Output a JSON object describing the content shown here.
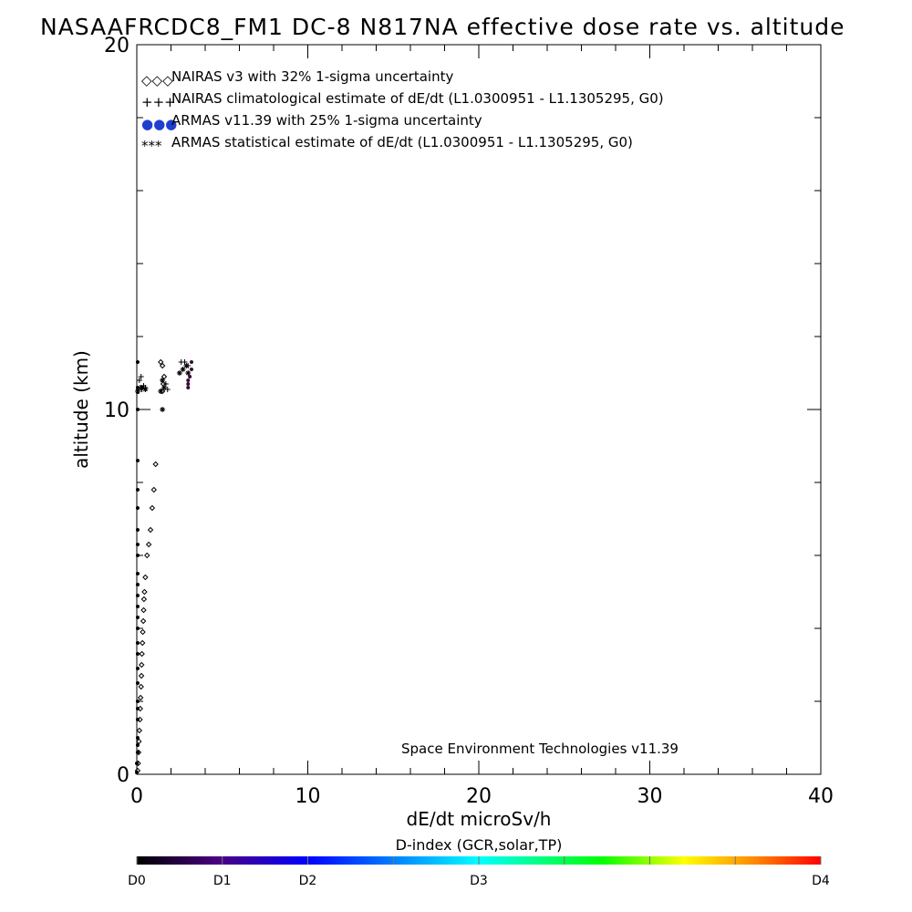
{
  "chart_data": {
    "type": "scatter",
    "title": "NASAAFRCDC8_FM1 DC-8   N817NA effective dose rate vs. altitude",
    "xlabel": "dE/dt microSv/h",
    "ylabel": "altitude (km)",
    "xlim": [
      0,
      40
    ],
    "ylim": [
      0,
      20
    ],
    "x_ticks": [
      "0",
      "10",
      "20",
      "30",
      "40"
    ],
    "y_ticks": [
      "0",
      "10",
      "20"
    ],
    "grid": false,
    "legend_position": "top-left",
    "legend": [
      {
        "marker": "◇◇◇",
        "label": "NAIRAS v3 with 32% 1-sigma uncertainty"
      },
      {
        "marker": "+++",
        "label": "NAIRAS climatological estimate of dE/dt (L1.0300951 - L1.1305295, G0)"
      },
      {
        "marker": "●●●",
        "label": "ARMAS v11.39 with 25% 1-sigma uncertainty"
      },
      {
        "marker": "***",
        "label": "ARMAS statistical estimate of dE/dt (L1.0300951 - L1.1305295, G0)"
      }
    ],
    "credit": "Space Environment Technologies v11.39",
    "colorbar": {
      "title": "D-index (GCR,solar,TP)",
      "labels": [
        {
          "text": "D0",
          "value": 0
        },
        {
          "text": "D1",
          "value": 0.125
        },
        {
          "text": "D2",
          "value": 0.25
        },
        {
          "text": "D3",
          "value": 0.5
        },
        {
          "text": "D4",
          "value": 1.0
        }
      ]
    },
    "series": [
      {
        "name": "NAIRAS v3 with 32% 1-sigma uncertainty",
        "marker": "diamond",
        "color": "#000000",
        "points": [
          [
            0.05,
            0.1
          ],
          [
            0.08,
            0.3
          ],
          [
            0.1,
            0.6
          ],
          [
            0.12,
            0.9
          ],
          [
            0.15,
            1.2
          ],
          [
            0.18,
            1.5
          ],
          [
            0.2,
            1.8
          ],
          [
            0.22,
            2.1
          ],
          [
            0.25,
            2.4
          ],
          [
            0.27,
            2.7
          ],
          [
            0.28,
            3.0
          ],
          [
            0.3,
            3.3
          ],
          [
            0.33,
            3.6
          ],
          [
            0.35,
            3.9
          ],
          [
            0.38,
            4.2
          ],
          [
            0.4,
            4.5
          ],
          [
            0.42,
            4.8
          ],
          [
            0.45,
            5.0
          ],
          [
            0.5,
            5.4
          ],
          [
            0.6,
            6.0
          ],
          [
            0.7,
            6.3
          ],
          [
            0.8,
            6.7
          ],
          [
            0.9,
            7.3
          ],
          [
            1.0,
            7.8
          ],
          [
            1.1,
            8.5
          ],
          [
            1.5,
            10.5
          ],
          [
            1.55,
            10.7
          ],
          [
            1.6,
            10.9
          ],
          [
            1.5,
            11.2
          ],
          [
            1.4,
            11.3
          ]
        ]
      },
      {
        "name": "NAIRAS climatological estimate of dE/dt (L1.0300951 - L1.1305295, G0)",
        "marker": "plus",
        "color": "#000000",
        "points": [
          [
            0.1,
            10.5
          ],
          [
            0.2,
            10.6
          ],
          [
            0.3,
            10.55
          ],
          [
            0.4,
            10.65
          ],
          [
            0.5,
            10.6
          ],
          [
            0.15,
            10.8
          ],
          [
            0.25,
            10.9
          ],
          [
            1.4,
            10.5
          ],
          [
            1.6,
            10.6
          ],
          [
            1.8,
            10.55
          ],
          [
            1.7,
            10.7
          ],
          [
            1.5,
            10.8
          ],
          [
            2.6,
            11.3
          ],
          [
            2.8,
            11.3
          ],
          [
            3.0,
            11.2
          ]
        ]
      },
      {
        "name": "ARMAS v11.39 with 25% 1-sigma uncertainty",
        "marker": "circle",
        "color": "#000000",
        "points": [
          [
            0.0,
            0.05
          ],
          [
            0.0,
            0.3
          ],
          [
            0.05,
            0.6
          ],
          [
            0.05,
            0.8
          ],
          [
            0.05,
            1.0
          ],
          [
            0.05,
            1.5
          ],
          [
            0.05,
            1.8
          ],
          [
            0.05,
            2.0
          ],
          [
            0.05,
            2.5
          ],
          [
            0.05,
            2.9
          ],
          [
            0.05,
            3.3
          ],
          [
            0.05,
            3.6
          ],
          [
            0.05,
            4.0
          ],
          [
            0.05,
            4.3
          ],
          [
            0.05,
            4.6
          ],
          [
            0.05,
            4.9
          ],
          [
            0.05,
            5.2
          ],
          [
            0.05,
            5.5
          ],
          [
            0.05,
            6.0
          ],
          [
            0.05,
            6.3
          ],
          [
            0.05,
            6.7
          ],
          [
            0.05,
            7.3
          ],
          [
            0.05,
            7.8
          ],
          [
            0.05,
            8.6
          ],
          [
            0.05,
            10.0
          ],
          [
            0.05,
            10.6
          ],
          [
            0.05,
            11.3
          ],
          [
            3.0,
            10.6
          ],
          [
            3.0,
            10.7
          ],
          [
            3.0,
            10.8
          ],
          [
            3.1,
            10.9
          ],
          [
            3.2,
            11.3
          ],
          [
            3.2,
            11.1
          ]
        ]
      },
      {
        "name": "ARMAS statistical estimate of dE/dt (L1.0300951 - L1.1305295, G0)",
        "marker": "asterisk",
        "color": "#000000",
        "points": [
          [
            0.05,
            10.5
          ],
          [
            0.3,
            10.6
          ],
          [
            0.5,
            10.55
          ],
          [
            1.5,
            10.0
          ],
          [
            1.4,
            10.5
          ],
          [
            1.6,
            10.6
          ],
          [
            1.5,
            10.8
          ],
          [
            2.5,
            11.0
          ],
          [
            2.7,
            11.1
          ],
          [
            2.9,
            11.2
          ],
          [
            3.0,
            11.0
          ]
        ]
      }
    ]
  }
}
